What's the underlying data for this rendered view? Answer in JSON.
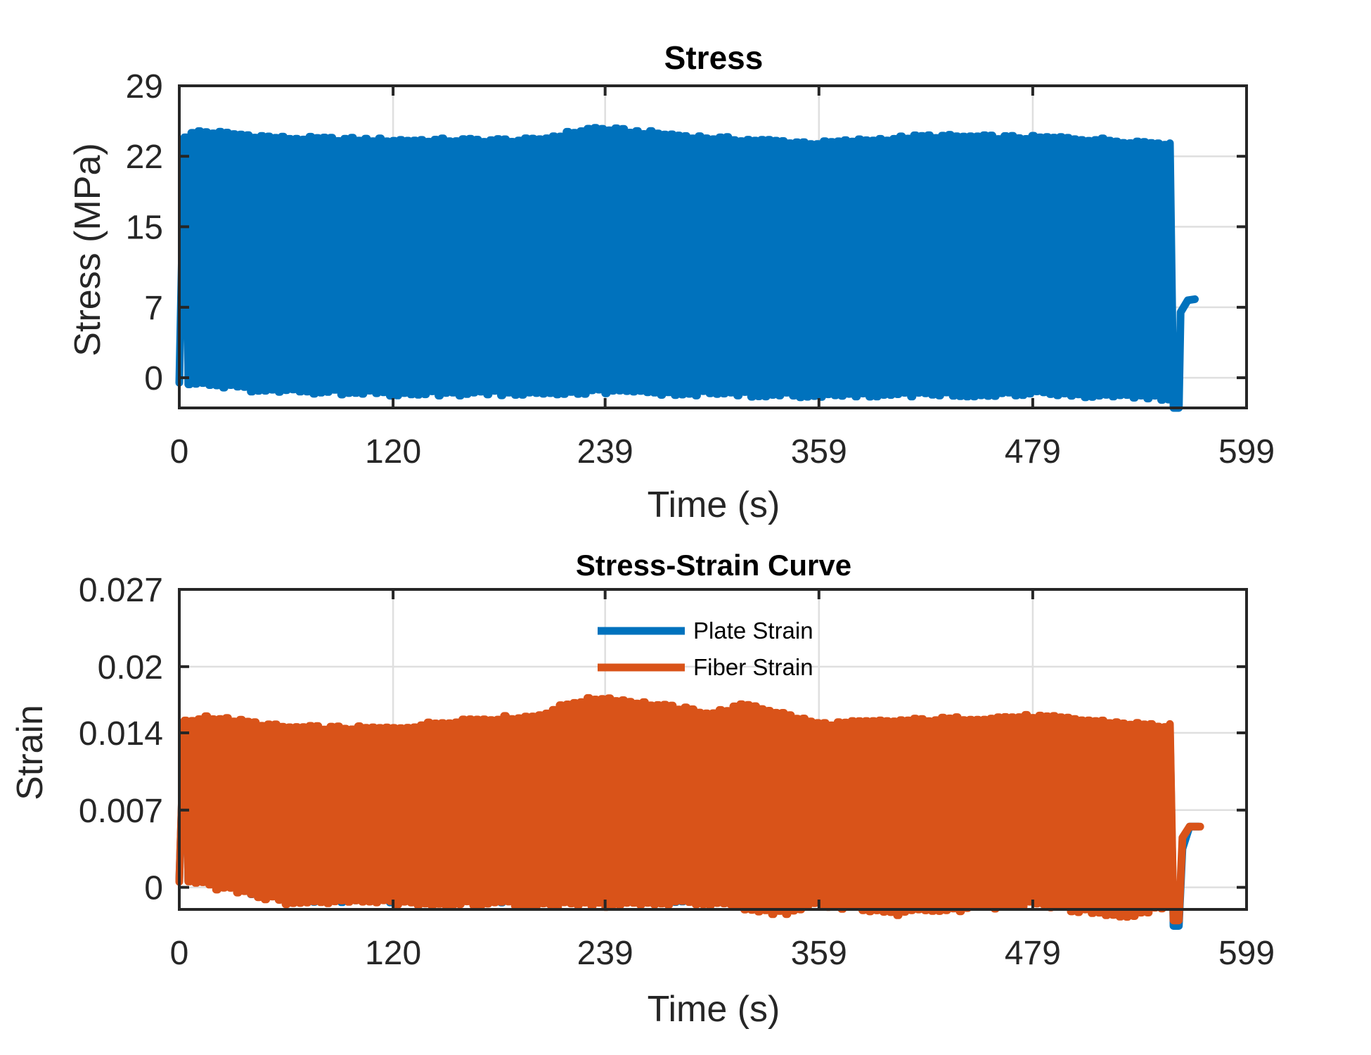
{
  "chart_data": [
    {
      "type": "line",
      "title": "Stress",
      "xlabel": "Time (s)",
      "ylabel": "Stress (MPa)",
      "xlim": [
        0,
        599
      ],
      "ylim": [
        -3,
        29
      ],
      "xticks": [
        "0",
        "120",
        "239",
        "359",
        "479",
        "599"
      ],
      "yticks": [
        "0",
        "7",
        "15",
        "22",
        "29"
      ],
      "grid": true,
      "legend": null,
      "color": "#0072BD",
      "cycle_period_s": 3.9,
      "oscillation_end_s": 556,
      "series": [
        {
          "color": "#0072BD",
          "peak_envelope": [
            [
              6,
              24.0
            ],
            [
              10,
              24.5
            ],
            [
              60,
              23.8
            ],
            [
              120,
              23.6
            ],
            [
              200,
              23.6
            ],
            [
              233,
              24.8
            ],
            [
              300,
              23.8
            ],
            [
              360,
              23.3
            ],
            [
              420,
              24.0
            ],
            [
              500,
              23.8
            ],
            [
              555,
              23.3
            ]
          ],
          "trough_envelope": [
            [
              6,
              -0.5
            ],
            [
              40,
              -1.2
            ],
            [
              120,
              -1.6
            ],
            [
              239,
              -1.4
            ],
            [
              300,
              -1.6
            ],
            [
              360,
              -1.8
            ],
            [
              480,
              -1.6
            ],
            [
              555,
              -2.0
            ]
          ],
          "tail": [
            [
              556,
              23.3
            ],
            [
              558,
              -3.0
            ],
            [
              561,
              -3.0
            ],
            [
              562,
              6.5
            ],
            [
              566,
              7.7
            ],
            [
              570,
              7.8
            ]
          ]
        }
      ]
    },
    {
      "type": "line",
      "title": "Stress-Strain Curve",
      "xlabel": "Time (s)",
      "ylabel": "Strain",
      "xlim": [
        0,
        599
      ],
      "ylim": [
        -0.002,
        0.027
      ],
      "xticks": [
        "0",
        "120",
        "239",
        "359",
        "479",
        "599"
      ],
      "yticks": [
        "0",
        "0.007",
        "0.014",
        "0.02",
        "0.027"
      ],
      "grid": true,
      "legend": "top-center",
      "cycle_period_s": 3.9,
      "oscillation_end_s": 556,
      "series": [
        {
          "name": "Plate Strain",
          "color": "#0072BD",
          "peak_envelope": [
            [
              6,
              0.0147
            ],
            [
              60,
              0.0141
            ],
            [
              120,
              0.0142
            ],
            [
              200,
              0.0153
            ],
            [
              239,
              0.0158
            ],
            [
              300,
              0.0154
            ],
            [
              360,
              0.0146
            ],
            [
              420,
              0.0148
            ],
            [
              480,
              0.0151
            ],
            [
              555,
              0.0138
            ]
          ],
          "trough_envelope": [
            [
              6,
              0.0007
            ],
            [
              60,
              -0.0011
            ],
            [
              120,
              -0.0012
            ],
            [
              239,
              -0.0011
            ],
            [
              300,
              -0.0012
            ],
            [
              360,
              -0.0013
            ],
            [
              480,
              -0.0012
            ],
            [
              555,
              -0.0015
            ]
          ],
          "tail": [
            [
              556,
              0.014
            ],
            [
              558,
              -0.0035
            ],
            [
              561,
              -0.0035
            ],
            [
              563,
              0.0035
            ],
            [
              567,
              0.0055
            ],
            [
              572,
              0.0055
            ]
          ]
        },
        {
          "name": "Fiber Strain",
          "color": "#D95319",
          "peak_envelope": [
            [
              6,
              0.015
            ],
            [
              15,
              0.0155
            ],
            [
              60,
              0.0145
            ],
            [
              120,
              0.0144
            ],
            [
              160,
              0.0152
            ],
            [
              200,
              0.0155
            ],
            [
              222,
              0.0168
            ],
            [
              239,
              0.0172
            ],
            [
              300,
              0.0158
            ],
            [
              320,
              0.0166
            ],
            [
              360,
              0.0148
            ],
            [
              420,
              0.0152
            ],
            [
              480,
              0.0155
            ],
            [
              555,
              0.0146
            ]
          ],
          "trough_envelope": [
            [
              6,
              0.0005
            ],
            [
              60,
              -0.0013
            ],
            [
              120,
              -0.0014
            ],
            [
              239,
              -0.0016
            ],
            [
              300,
              -0.0014
            ],
            [
              340,
              -0.0024
            ],
            [
              360,
              -0.0015
            ],
            [
              400,
              -0.0024
            ],
            [
              480,
              -0.0015
            ],
            [
              535,
              -0.0028
            ],
            [
              555,
              -0.0016
            ]
          ],
          "tail": [
            [
              556,
              0.0148
            ],
            [
              558,
              -0.003
            ],
            [
              561,
              -0.003
            ],
            [
              563,
              0.0045
            ],
            [
              567,
              0.0055
            ],
            [
              573,
              0.0055
            ]
          ]
        }
      ]
    }
  ]
}
